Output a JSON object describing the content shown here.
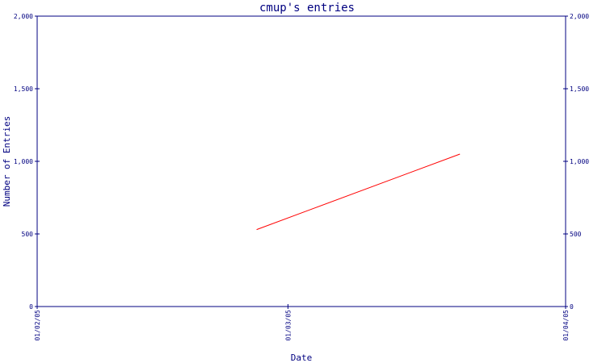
{
  "chart_data": {
    "type": "line",
    "title": "cmup's entries",
    "xlabel": "Date",
    "ylabel": "Number of Entries",
    "x_ticks": [
      "01/02/05",
      "01/03/05",
      "01/04/05"
    ],
    "x_tick_days": [
      0,
      28,
      59
    ],
    "x_range_days": [
      0,
      59
    ],
    "y_ticks": [
      "0",
      "500",
      "1,000",
      "1,500",
      "2,000"
    ],
    "y_tick_values": [
      0,
      500,
      1000,
      1500,
      2000
    ],
    "ylim": [
      0,
      2000
    ],
    "right_axis": true,
    "grid": false,
    "series": [
      {
        "x_days": [
          24.5,
          47.2
        ],
        "values": [
          530,
          1050
        ]
      }
    ],
    "colors": {
      "axis": "#000080",
      "line": "#ff0000"
    }
  }
}
